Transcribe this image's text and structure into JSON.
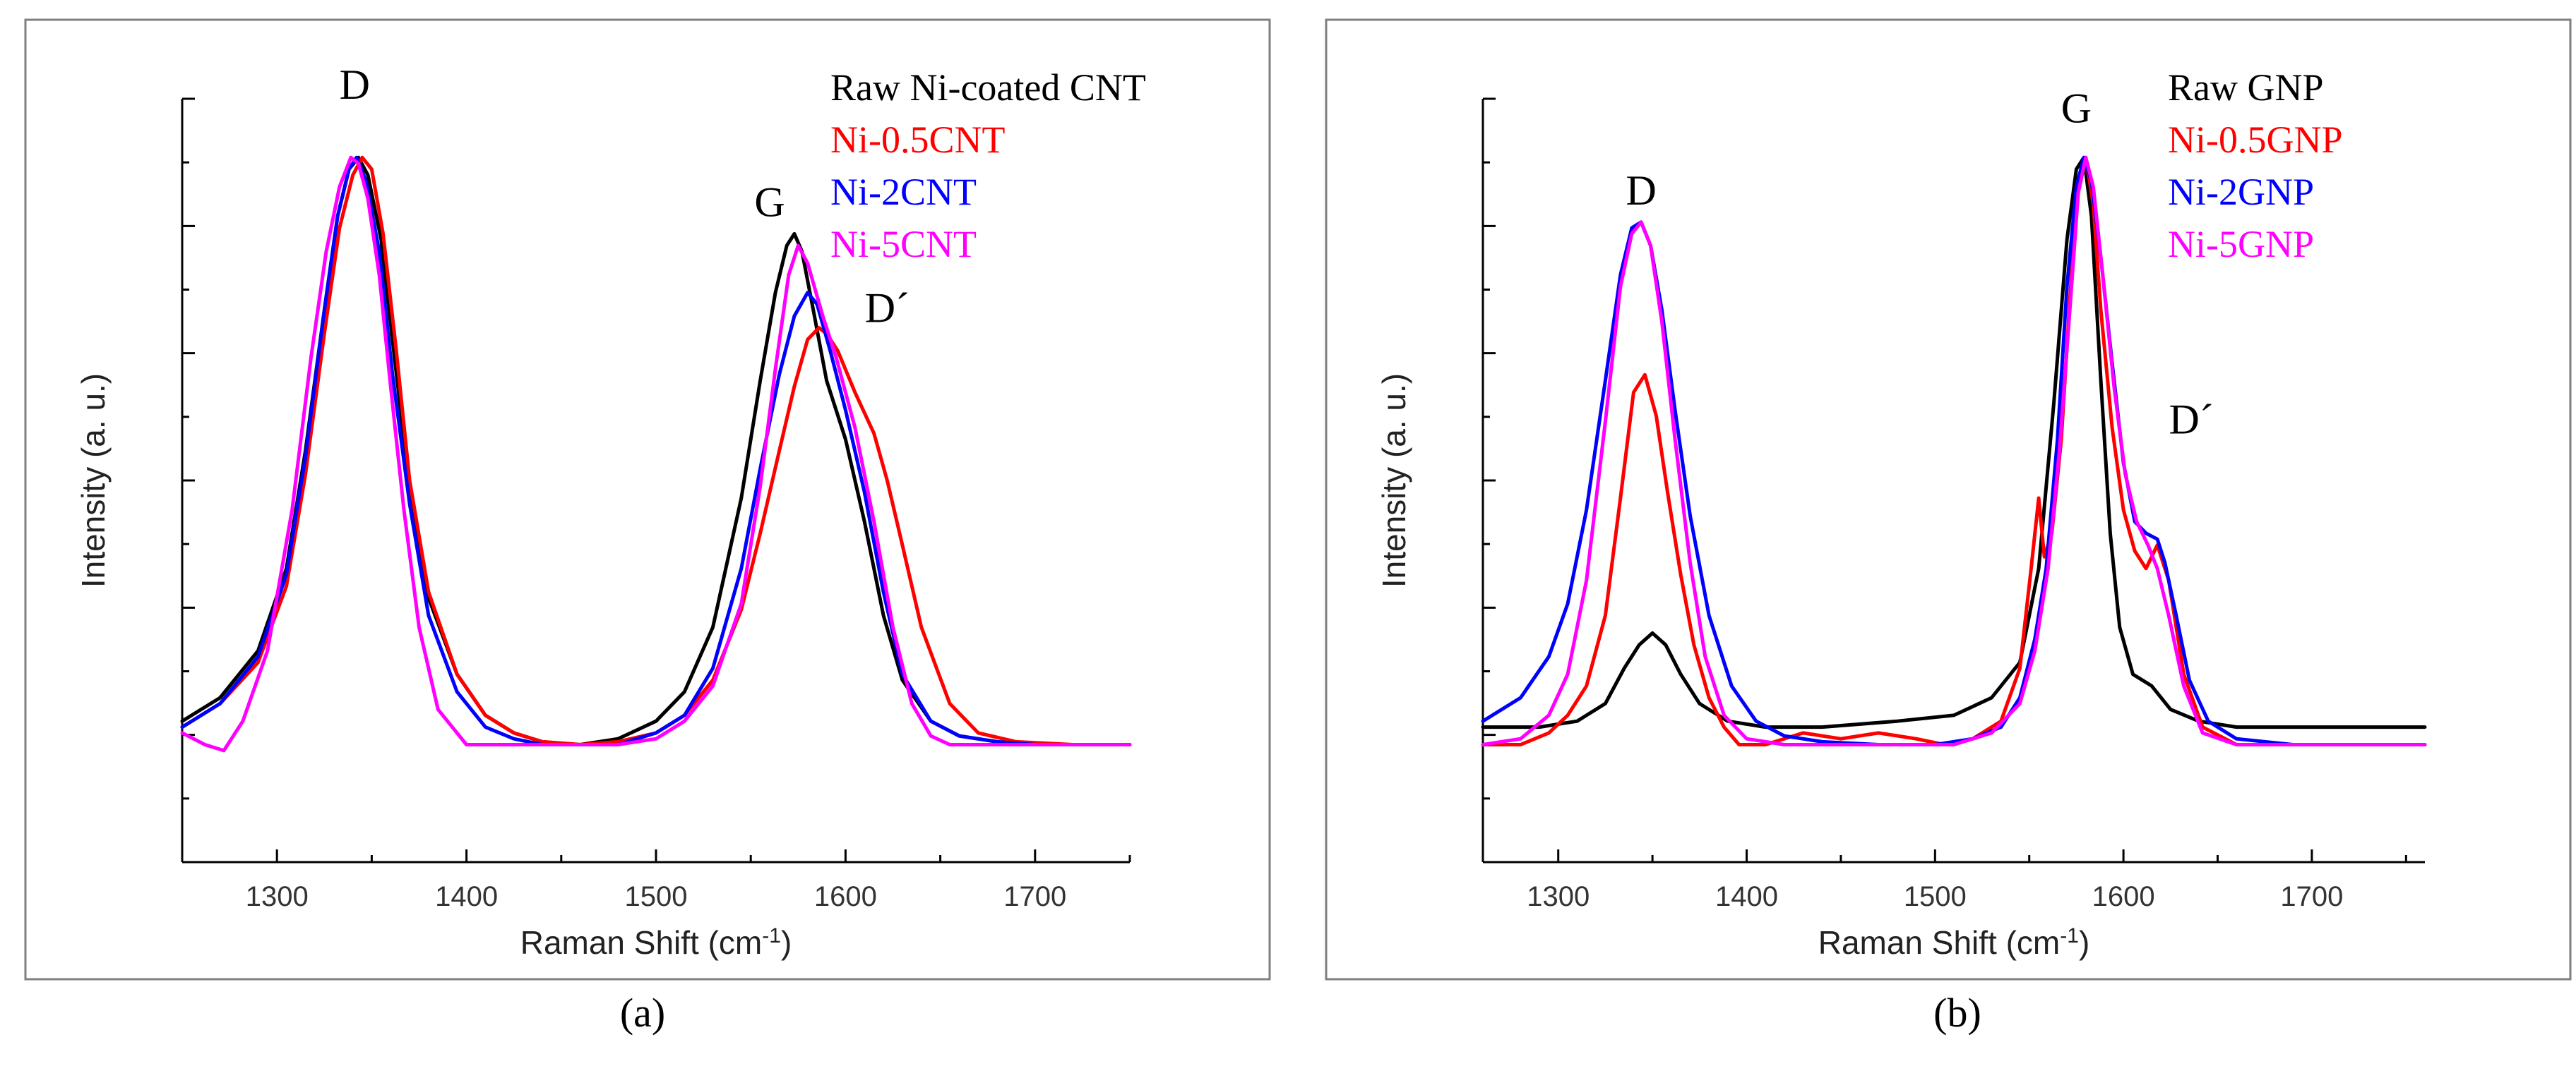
{
  "chart_data": [
    {
      "type": "line",
      "panel_label": "(a)",
      "xlabel": "Raman Shift (cm",
      "xlabel_sup": "-1",
      "xlabel_end": ")",
      "ylabel": "Intensity (a. u.)",
      "xlim": [
        1250,
        1750
      ],
      "ylim": [
        -0.2,
        1.1
      ],
      "x_ticks": [
        1300,
        1400,
        1500,
        1600,
        1700
      ],
      "peak_labels": [
        {
          "text": "D",
          "x": 1341,
          "y": 1.1
        },
        {
          "text": "G",
          "x": 1560,
          "y": 0.9
        },
        {
          "text": "D´",
          "x": 1622,
          "y": 0.72
        }
      ],
      "legend": [
        {
          "name": "Raw Ni-coated CNT",
          "color": "#000000"
        },
        {
          "name": "Ni-0.5CNT",
          "color": "#ff0000"
        },
        {
          "name": "Ni-2CNT",
          "color": "#0000ff"
        },
        {
          "name": "Ni-5CNT",
          "color": "#ff00ff"
        }
      ],
      "series": [
        {
          "name": "Raw Ni-coated CNT",
          "color": "#000000",
          "x": [
            1250,
            1270,
            1290,
            1305,
            1315,
            1325,
            1332,
            1338,
            1343,
            1348,
            1355,
            1362,
            1370,
            1380,
            1395,
            1410,
            1425,
            1440,
            1460,
            1480,
            1500,
            1515,
            1530,
            1545,
            1555,
            1563,
            1569,
            1573,
            1577,
            1583,
            1590,
            1600,
            1610,
            1620,
            1630,
            1645,
            1660,
            1680,
            1700,
            1720,
            1750
          ],
          "y": [
            0.04,
            0.08,
            0.16,
            0.3,
            0.5,
            0.74,
            0.9,
            0.98,
            1.0,
            0.97,
            0.86,
            0.66,
            0.44,
            0.25,
            0.12,
            0.05,
            0.02,
            0.005,
            0.0,
            0.01,
            0.04,
            0.09,
            0.2,
            0.42,
            0.62,
            0.77,
            0.85,
            0.87,
            0.84,
            0.74,
            0.62,
            0.52,
            0.38,
            0.22,
            0.11,
            0.04,
            0.015,
            0.005,
            0.0,
            0.0,
            0.0
          ]
        },
        {
          "name": "Ni-0.5CNT",
          "color": "#ff0000",
          "x": [
            1250,
            1270,
            1290,
            1305,
            1315,
            1325,
            1333,
            1340,
            1345,
            1350,
            1356,
            1363,
            1370,
            1380,
            1395,
            1410,
            1425,
            1440,
            1460,
            1480,
            1500,
            1515,
            1530,
            1545,
            1555,
            1565,
            1573,
            1580,
            1586,
            1590,
            1596,
            1605,
            1615,
            1622,
            1630,
            1640,
            1655,
            1670,
            1690,
            1720,
            1750
          ],
          "y": [
            0.03,
            0.07,
            0.14,
            0.27,
            0.46,
            0.7,
            0.88,
            0.97,
            1.0,
            0.98,
            0.87,
            0.67,
            0.45,
            0.26,
            0.12,
            0.05,
            0.02,
            0.005,
            0.0,
            0.005,
            0.02,
            0.05,
            0.11,
            0.23,
            0.36,
            0.5,
            0.61,
            0.69,
            0.71,
            0.7,
            0.67,
            0.6,
            0.53,
            0.45,
            0.34,
            0.2,
            0.07,
            0.02,
            0.005,
            0.0,
            0.0
          ]
        },
        {
          "name": "Ni-2CNT",
          "color": "#0000ff",
          "x": [
            1250,
            1270,
            1290,
            1305,
            1315,
            1325,
            1332,
            1338,
            1342,
            1347,
            1354,
            1361,
            1370,
            1380,
            1395,
            1410,
            1425,
            1440,
            1460,
            1480,
            1500,
            1515,
            1530,
            1545,
            1555,
            1565,
            1573,
            1580,
            1585,
            1592,
            1600,
            1610,
            1620,
            1630,
            1645,
            1660,
            1680,
            1700,
            1720,
            1750
          ],
          "y": [
            0.03,
            0.07,
            0.15,
            0.29,
            0.49,
            0.74,
            0.9,
            0.98,
            1.0,
            0.96,
            0.84,
            0.63,
            0.41,
            0.22,
            0.09,
            0.03,
            0.01,
            0.0,
            0.0,
            0.0,
            0.02,
            0.05,
            0.13,
            0.3,
            0.47,
            0.63,
            0.73,
            0.77,
            0.75,
            0.67,
            0.57,
            0.43,
            0.26,
            0.12,
            0.04,
            0.015,
            0.005,
            0.0,
            0.0,
            0.0
          ]
        },
        {
          "name": "Ni-5CNT",
          "color": "#ff00ff",
          "x": [
            1250,
            1262,
            1272,
            1282,
            1295,
            1308,
            1318,
            1326,
            1333,
            1339,
            1343,
            1348,
            1354,
            1360,
            1367,
            1375,
            1385,
            1400,
            1420,
            1450,
            1480,
            1500,
            1515,
            1530,
            1545,
            1555,
            1563,
            1570,
            1575,
            1580,
            1588,
            1595,
            1605,
            1615,
            1625,
            1635,
            1645,
            1655,
            1670,
            1700,
            1750
          ],
          "y": [
            0.02,
            0.0,
            -0.01,
            0.04,
            0.16,
            0.4,
            0.66,
            0.84,
            0.95,
            1.0,
            0.99,
            0.93,
            0.8,
            0.61,
            0.4,
            0.2,
            0.06,
            0.0,
            0.0,
            0.0,
            0.0,
            0.01,
            0.04,
            0.1,
            0.24,
            0.44,
            0.64,
            0.8,
            0.85,
            0.82,
            0.73,
            0.66,
            0.54,
            0.38,
            0.2,
            0.07,
            0.015,
            0.0,
            0.0,
            0.0,
            0.0
          ]
        }
      ]
    },
    {
      "type": "line",
      "panel_label": "(b)",
      "xlabel": "Raman Shift (cm",
      "xlabel_sup": "-1",
      "xlabel_end": ")",
      "ylabel": "Intensity (a. u.)",
      "xlim": [
        1260,
        1760
      ],
      "ylim": [
        -0.2,
        1.1
      ],
      "x_ticks": [
        1300,
        1400,
        1500,
        1600,
        1700
      ],
      "peak_labels": [
        {
          "text": "G",
          "x": 1575,
          "y": 1.06
        },
        {
          "text": "D",
          "x": 1344,
          "y": 0.92
        },
        {
          "text": "D´",
          "x": 1636,
          "y": 0.53
        }
      ],
      "legend": [
        {
          "name": "Raw GNP",
          "color": "#000000"
        },
        {
          "name": "Ni-0.5GNP",
          "color": "#ff0000"
        },
        {
          "name": "Ni-2GNP",
          "color": "#0000ff"
        },
        {
          "name": "Ni-5GNP",
          "color": "#ff00ff"
        }
      ],
      "series": [
        {
          "name": "Raw GNP",
          "color": "#000000",
          "x": [
            1260,
            1290,
            1310,
            1325,
            1335,
            1343,
            1350,
            1357,
            1365,
            1375,
            1390,
            1410,
            1440,
            1480,
            1510,
            1530,
            1545,
            1555,
            1563,
            1570,
            1575,
            1579,
            1583,
            1588,
            1593,
            1598,
            1605,
            1615,
            1625,
            1640,
            1660,
            1690,
            1720,
            1760
          ],
          "y": [
            0.03,
            0.03,
            0.04,
            0.07,
            0.13,
            0.17,
            0.19,
            0.17,
            0.12,
            0.07,
            0.04,
            0.03,
            0.03,
            0.04,
            0.05,
            0.08,
            0.14,
            0.3,
            0.58,
            0.86,
            0.98,
            1.0,
            0.9,
            0.62,
            0.36,
            0.2,
            0.12,
            0.1,
            0.06,
            0.04,
            0.03,
            0.03,
            0.03,
            0.03
          ]
        },
        {
          "name": "Ni-0.5GNP",
          "color": "#ff0000",
          "x": [
            1260,
            1280,
            1295,
            1305,
            1315,
            1325,
            1333,
            1340,
            1346,
            1352,
            1358,
            1365,
            1372,
            1380,
            1388,
            1396,
            1410,
            1430,
            1450,
            1470,
            1490,
            1505,
            1520,
            1535,
            1545,
            1551,
            1555,
            1558,
            1562,
            1567,
            1572,
            1576,
            1580,
            1584,
            1588,
            1594,
            1600,
            1606,
            1612,
            1618,
            1624,
            1632,
            1642,
            1660,
            1690,
            1720,
            1760
          ],
          "y": [
            0.0,
            0.0,
            0.02,
            0.05,
            0.1,
            0.22,
            0.42,
            0.6,
            0.63,
            0.56,
            0.43,
            0.29,
            0.17,
            0.08,
            0.03,
            0.0,
            0.0,
            0.02,
            0.01,
            0.02,
            0.01,
            0.0,
            0.01,
            0.04,
            0.13,
            0.3,
            0.42,
            0.32,
            0.36,
            0.52,
            0.78,
            0.94,
            1.0,
            0.92,
            0.74,
            0.54,
            0.4,
            0.33,
            0.3,
            0.34,
            0.28,
            0.12,
            0.03,
            0.0,
            0.0,
            0.0,
            0.0
          ]
        },
        {
          "name": "Ni-2GNP",
          "color": "#0000ff",
          "x": [
            1260,
            1280,
            1295,
            1305,
            1315,
            1325,
            1333,
            1339,
            1344,
            1349,
            1355,
            1362,
            1370,
            1380,
            1392,
            1405,
            1420,
            1440,
            1470,
            1500,
            1520,
            1535,
            1545,
            1553,
            1559,
            1565,
            1570,
            1575,
            1579,
            1583,
            1588,
            1594,
            1600,
            1606,
            1612,
            1618,
            1622,
            1628,
            1635,
            1645,
            1660,
            1690,
            1720,
            1760
          ],
          "y": [
            0.04,
            0.08,
            0.15,
            0.24,
            0.4,
            0.62,
            0.8,
            0.88,
            0.89,
            0.85,
            0.74,
            0.57,
            0.39,
            0.22,
            0.1,
            0.04,
            0.015,
            0.005,
            0.0,
            0.0,
            0.01,
            0.03,
            0.08,
            0.18,
            0.3,
            0.52,
            0.78,
            0.95,
            1.0,
            0.96,
            0.83,
            0.65,
            0.48,
            0.38,
            0.36,
            0.35,
            0.31,
            0.22,
            0.11,
            0.04,
            0.01,
            0.0,
            0.0,
            0.0
          ]
        },
        {
          "name": "Ni-5GNP",
          "color": "#ff00ff",
          "x": [
            1260,
            1280,
            1295,
            1305,
            1315,
            1325,
            1333,
            1339,
            1344,
            1349,
            1355,
            1362,
            1370,
            1378,
            1388,
            1400,
            1420,
            1450,
            1480,
            1510,
            1530,
            1545,
            1553,
            1560,
            1566,
            1572,
            1576,
            1580,
            1584,
            1589,
            1595,
            1601,
            1607,
            1613,
            1618,
            1624,
            1632,
            1642,
            1660,
            1690,
            1720,
            1760
          ],
          "y": [
            0.0,
            0.01,
            0.05,
            0.12,
            0.28,
            0.55,
            0.78,
            0.87,
            0.89,
            0.85,
            0.72,
            0.52,
            0.31,
            0.15,
            0.05,
            0.01,
            0.0,
            0.0,
            0.0,
            0.0,
            0.02,
            0.07,
            0.16,
            0.3,
            0.5,
            0.76,
            0.94,
            1.0,
            0.95,
            0.8,
            0.61,
            0.46,
            0.38,
            0.34,
            0.3,
            0.22,
            0.1,
            0.02,
            0.0,
            0.0,
            0.0,
            0.0
          ]
        }
      ]
    }
  ]
}
